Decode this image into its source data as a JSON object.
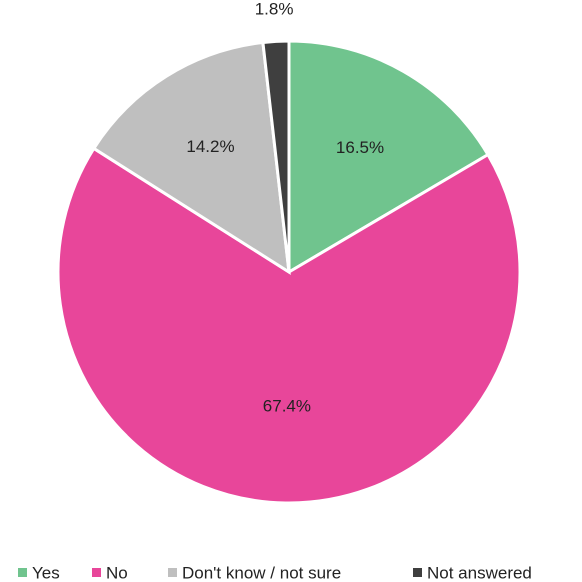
{
  "chart_data": {
    "type": "pie",
    "title": "",
    "start_angle_deg": 0,
    "direction": "clockwise",
    "legend_position": "bottom",
    "slices": [
      {
        "name": "Yes",
        "value": 16.5,
        "label": "16.5%",
        "color": "#70C48E"
      },
      {
        "name": "No",
        "value": 67.4,
        "label": "67.4%",
        "color": "#E8469A"
      },
      {
        "name": "Don't know / not sure",
        "value": 14.2,
        "label": "14.2%",
        "color": "#BFBFBF"
      },
      {
        "name": "Not answered",
        "value": 1.8,
        "label": "1.8%",
        "color": "#3F3F3F"
      }
    ]
  }
}
